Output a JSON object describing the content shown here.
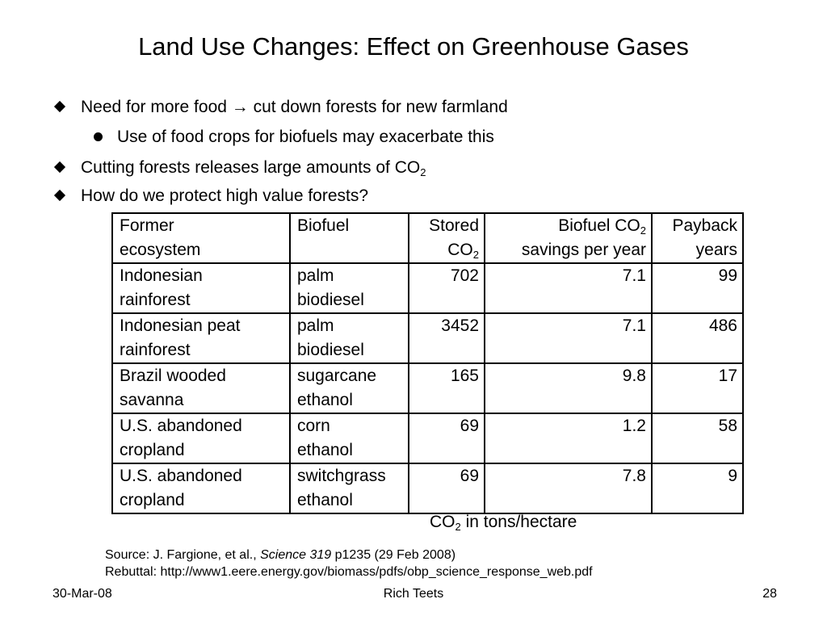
{
  "title": "Land Use Changes: Effect on Greenhouse Gases",
  "bullets": [
    {
      "level": 1,
      "text_before": "Need for more food ",
      "arrow": "→",
      "text_after": " cut down forests for new farmland"
    },
    {
      "level": 2,
      "text": "Use of food crops for biofuels may exacerbate this"
    },
    {
      "level": 1,
      "text": "Cutting forests releases large amounts of CO",
      "sub": "2"
    },
    {
      "level": 1,
      "text": "How do we protect high value forests?"
    }
  ],
  "table": {
    "headers": {
      "former_line1": "Former",
      "former_line2": "ecosystem",
      "biofuel": "Biofuel",
      "stored_line1": "Stored",
      "stored_line2": "CO",
      "stored_sub": "2",
      "savings_line1": "Biofuel CO",
      "savings_sub": "2",
      "savings_line2": "savings per year",
      "payback_line1": "Payback",
      "payback_line2": "years"
    },
    "rows": [
      {
        "eco1": "Indonesian",
        "eco2": "rainforest",
        "fuel1": "palm",
        "fuel2": "biodiesel",
        "stored": "702",
        "savings": "7.1",
        "payback": "99"
      },
      {
        "eco1": "Indonesian peat",
        "eco2": "rainforest",
        "fuel1": "palm",
        "fuel2": "biodiesel",
        "stored": "3452",
        "savings": "7.1",
        "payback": "486"
      },
      {
        "eco1": "Brazil wooded",
        "eco2": "savanna",
        "fuel1": "sugarcane",
        "fuel2": "ethanol",
        "stored": "165",
        "savings": "9.8",
        "payback": "17"
      },
      {
        "eco1": "U.S. abandoned",
        "eco2": "cropland",
        "fuel1": "corn",
        "fuel2": "ethanol",
        "stored": "69",
        "savings": "1.2",
        "payback": "58"
      },
      {
        "eco1": "U.S. abandoned",
        "eco2": "cropland",
        "fuel1": "switchgrass",
        "fuel2": "ethanol",
        "stored": "69",
        "savings": "7.8",
        "payback": "9"
      }
    ]
  },
  "units": {
    "prefix": "CO",
    "sub": "2",
    "suffix": " in tons/hectare"
  },
  "source": {
    "line1_pre": "Source: J. Fargione, et al., ",
    "line1_journal": "Science 319",
    "line1_post": " p1235  (29 Feb 2008)",
    "line2": "Rebuttal:  http://www1.eere.energy.gov/biomass/pdfs/obp_science_response_web.pdf"
  },
  "footer": {
    "date": "30-Mar-08",
    "author": "Rich Teets",
    "page": "28"
  }
}
